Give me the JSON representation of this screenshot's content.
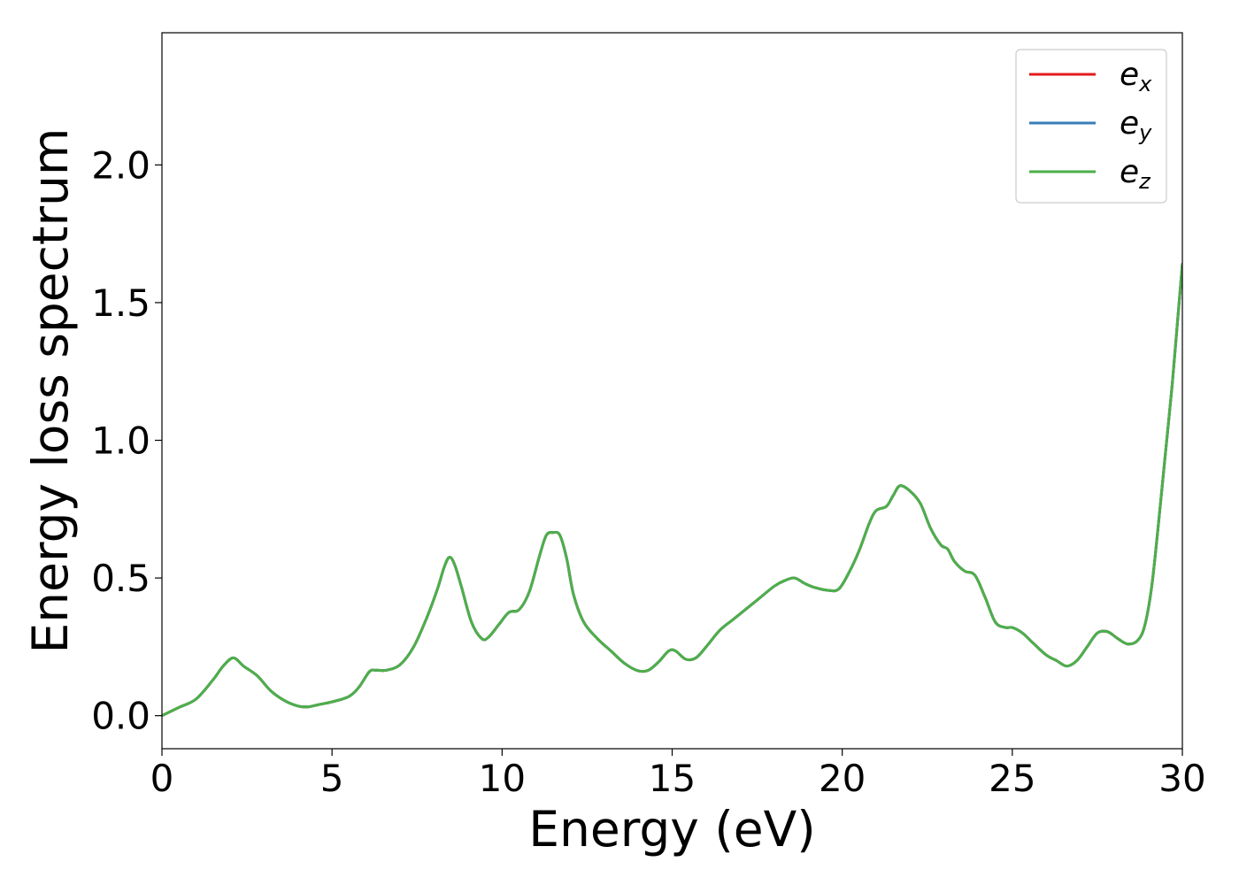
{
  "chart_data": {
    "type": "line",
    "title": "",
    "xlabel": "Energy (eV)",
    "ylabel": "Energy loss spectrum",
    "xlim": [
      0,
      30
    ],
    "ylim": [
      -0.12,
      2.48
    ],
    "x_ticks": [
      0,
      5,
      10,
      15,
      20,
      25,
      30
    ],
    "x_tick_labels": [
      "0",
      "5",
      "10",
      "15",
      "20",
      "25",
      "30"
    ],
    "y_ticks": [
      0.0,
      0.5,
      1.0,
      1.5,
      2.0
    ],
    "y_tick_labels": [
      "0.0",
      "0.5",
      "1.0",
      "1.5",
      "2.0"
    ],
    "grid": false,
    "legend_position": "top-right",
    "x": [
      0,
      0.5,
      1.0,
      1.5,
      1.8,
      2.1,
      2.4,
      2.8,
      3.2,
      3.6,
      4.0,
      4.3,
      4.6,
      5.0,
      5.5,
      5.8,
      6.1,
      6.3,
      6.6,
      7.0,
      7.4,
      7.8,
      8.1,
      8.3,
      8.45,
      8.6,
      8.8,
      9.1,
      9.4,
      9.6,
      9.9,
      10.2,
      10.5,
      10.8,
      11.1,
      11.3,
      11.5,
      11.7,
      11.9,
      12.1,
      12.4,
      12.8,
      13.2,
      13.6,
      14.0,
      14.3,
      14.6,
      14.9,
      15.1,
      15.4,
      15.7,
      16.0,
      16.4,
      16.8,
      17.2,
      17.6,
      18.0,
      18.3,
      18.6,
      18.9,
      19.2,
      19.6,
      19.9,
      20.2,
      20.5,
      20.8,
      21.0,
      21.3,
      21.5,
      21.7,
      22.0,
      22.3,
      22.6,
      22.9,
      23.1,
      23.3,
      23.6,
      23.9,
      24.2,
      24.5,
      24.8,
      25.0,
      25.3,
      25.6,
      26.0,
      26.3,
      26.6,
      26.9,
      27.2,
      27.5,
      27.8,
      28.1,
      28.4,
      28.7,
      28.9,
      29.1,
      29.3,
      29.5,
      29.7,
      29.85,
      30.0
    ],
    "series": [
      {
        "name": "e_x",
        "color": "#e41a1c",
        "y": [
          0.0,
          0.03,
          0.06,
          0.13,
          0.18,
          0.21,
          0.18,
          0.145,
          0.09,
          0.055,
          0.035,
          0.032,
          0.04,
          0.05,
          0.07,
          0.105,
          0.16,
          0.165,
          0.165,
          0.185,
          0.25,
          0.36,
          0.46,
          0.54,
          0.575,
          0.55,
          0.47,
          0.34,
          0.28,
          0.285,
          0.33,
          0.375,
          0.385,
          0.45,
          0.58,
          0.655,
          0.665,
          0.655,
          0.57,
          0.44,
          0.34,
          0.28,
          0.235,
          0.19,
          0.163,
          0.165,
          0.195,
          0.235,
          0.235,
          0.205,
          0.21,
          0.25,
          0.31,
          0.35,
          0.39,
          0.43,
          0.47,
          0.49,
          0.5,
          0.48,
          0.465,
          0.455,
          0.46,
          0.52,
          0.6,
          0.7,
          0.745,
          0.76,
          0.8,
          0.835,
          0.815,
          0.77,
          0.68,
          0.62,
          0.605,
          0.56,
          0.525,
          0.51,
          0.43,
          0.34,
          0.32,
          0.32,
          0.3,
          0.265,
          0.22,
          0.2,
          0.18,
          0.2,
          0.25,
          0.3,
          0.305,
          0.28,
          0.26,
          0.275,
          0.33,
          0.47,
          0.7,
          0.95,
          1.2,
          1.42,
          1.64
        ]
      },
      {
        "name": "e_y",
        "color": "#377eb8",
        "y": [
          0.0,
          0.03,
          0.06,
          0.13,
          0.18,
          0.21,
          0.18,
          0.145,
          0.09,
          0.055,
          0.035,
          0.032,
          0.04,
          0.05,
          0.07,
          0.105,
          0.16,
          0.165,
          0.165,
          0.185,
          0.25,
          0.36,
          0.46,
          0.54,
          0.575,
          0.55,
          0.47,
          0.34,
          0.28,
          0.285,
          0.33,
          0.375,
          0.385,
          0.45,
          0.58,
          0.655,
          0.665,
          0.655,
          0.57,
          0.44,
          0.34,
          0.28,
          0.235,
          0.19,
          0.163,
          0.165,
          0.195,
          0.235,
          0.235,
          0.205,
          0.21,
          0.25,
          0.31,
          0.35,
          0.39,
          0.43,
          0.47,
          0.49,
          0.5,
          0.48,
          0.465,
          0.455,
          0.46,
          0.52,
          0.6,
          0.7,
          0.745,
          0.76,
          0.8,
          0.835,
          0.815,
          0.77,
          0.68,
          0.62,
          0.605,
          0.56,
          0.525,
          0.51,
          0.43,
          0.34,
          0.32,
          0.32,
          0.3,
          0.265,
          0.22,
          0.2,
          0.18,
          0.2,
          0.25,
          0.3,
          0.305,
          0.28,
          0.26,
          0.275,
          0.33,
          0.47,
          0.7,
          0.95,
          1.2,
          1.42,
          1.64
        ]
      },
      {
        "name": "e_z",
        "color": "#4daf4a",
        "y": [
          0.0,
          0.03,
          0.06,
          0.13,
          0.18,
          0.21,
          0.18,
          0.145,
          0.09,
          0.055,
          0.035,
          0.032,
          0.04,
          0.05,
          0.07,
          0.105,
          0.16,
          0.165,
          0.165,
          0.185,
          0.25,
          0.36,
          0.46,
          0.54,
          0.575,
          0.55,
          0.47,
          0.34,
          0.28,
          0.285,
          0.33,
          0.375,
          0.385,
          0.45,
          0.58,
          0.655,
          0.665,
          0.655,
          0.57,
          0.44,
          0.34,
          0.28,
          0.235,
          0.19,
          0.163,
          0.165,
          0.195,
          0.235,
          0.235,
          0.205,
          0.21,
          0.25,
          0.31,
          0.35,
          0.39,
          0.43,
          0.47,
          0.49,
          0.5,
          0.48,
          0.465,
          0.455,
          0.46,
          0.52,
          0.6,
          0.7,
          0.745,
          0.76,
          0.8,
          0.835,
          0.815,
          0.77,
          0.68,
          0.62,
          0.605,
          0.56,
          0.525,
          0.51,
          0.43,
          0.34,
          0.32,
          0.32,
          0.3,
          0.265,
          0.22,
          0.2,
          0.18,
          0.2,
          0.25,
          0.3,
          0.305,
          0.28,
          0.26,
          0.275,
          0.33,
          0.47,
          0.7,
          0.95,
          1.2,
          1.42,
          1.64
        ]
      }
    ],
    "legend": [
      {
        "base": "e",
        "sub": "x",
        "color": "#e41a1c"
      },
      {
        "base": "e",
        "sub": "y",
        "color": "#377eb8"
      },
      {
        "base": "e",
        "sub": "z",
        "color": "#4daf4a"
      }
    ]
  }
}
